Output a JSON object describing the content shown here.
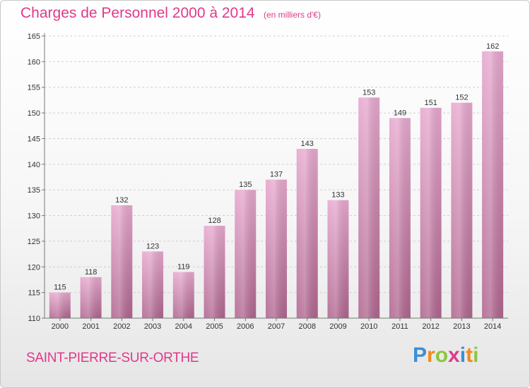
{
  "header": {
    "title": "Charges de Personnel 2000 à 2014",
    "subtitle": "(en milliers d'€)"
  },
  "footer": {
    "place": "SAINT-PIERRE-SUR-ORTHE",
    "logo_letters": [
      "P",
      "r",
      "o",
      "x",
      "i",
      "t",
      "i"
    ],
    "logo_colors": [
      "#3a8fd6",
      "#f08a1c",
      "#8cc63f",
      "#e0398a",
      "#3a8fd6",
      "#f08a1c",
      "#8cc63f"
    ]
  },
  "colors": {
    "bar_top": "#e7a9cf",
    "bar_bottom": "#b0668f",
    "accent": "#e0398a"
  },
  "chart_data": {
    "type": "bar",
    "title": "Charges de Personnel 2000 à 2014",
    "subtitle": "(en milliers d'€)",
    "categories": [
      "2000",
      "2001",
      "2002",
      "2003",
      "2004",
      "2005",
      "2006",
      "2007",
      "2008",
      "2009",
      "2010",
      "2011",
      "2012",
      "2013",
      "2014"
    ],
    "values": [
      115,
      118,
      132,
      123,
      119,
      128,
      135,
      137,
      143,
      133,
      153,
      149,
      151,
      152,
      162
    ],
    "ylim": [
      110,
      165
    ],
    "yticks": [
      110,
      115,
      120,
      125,
      130,
      135,
      140,
      145,
      150,
      155,
      160,
      165
    ],
    "grid": true
  }
}
